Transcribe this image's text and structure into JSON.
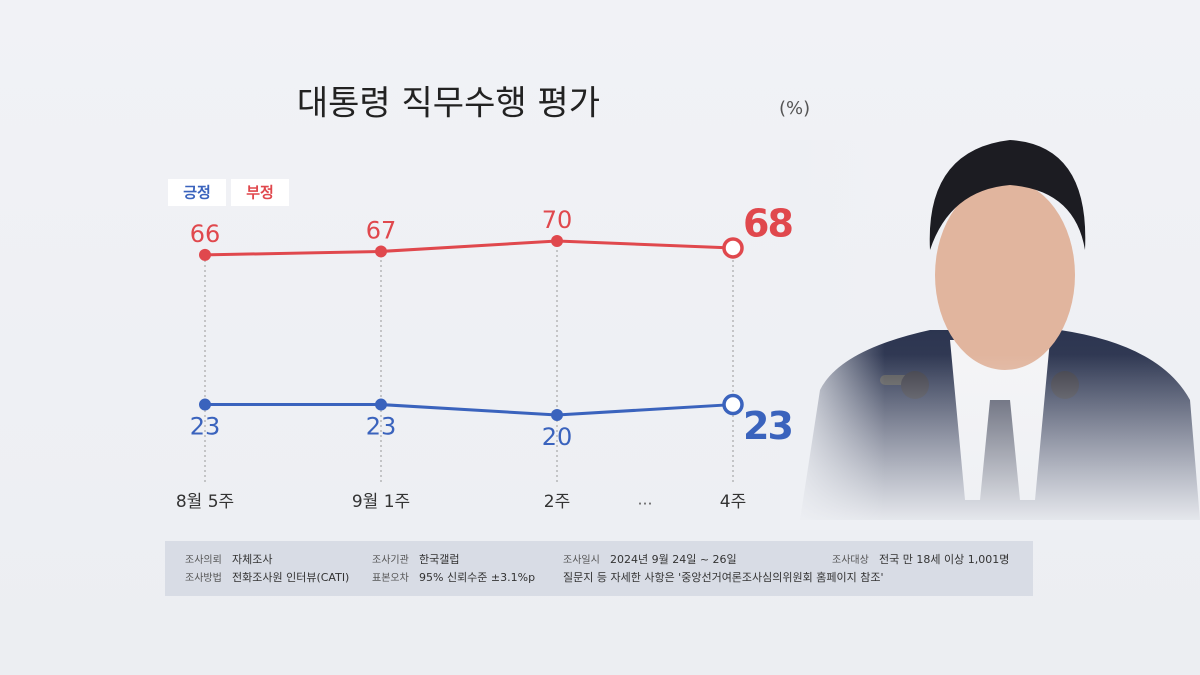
{
  "chart_data": {
    "type": "line",
    "title": "대통령 직무수행 평가",
    "unit": "(%)",
    "categories": [
      "8월 5주",
      "9월 1주",
      "2주",
      "4주"
    ],
    "annotations": [
      "…"
    ],
    "series": [
      {
        "name": "긍정",
        "color": "#3a63bd",
        "values": [
          23,
          23,
          20,
          23
        ]
      },
      {
        "name": "부정",
        "color": "#e0484d",
        "values": [
          66,
          67,
          70,
          68
        ]
      }
    ],
    "footer": {
      "rows": [
        [
          {
            "label": "조사의뢰",
            "value": "자체조사"
          },
          {
            "label": "조사기관",
            "value": "한국갤럽"
          },
          {
            "label": "조사일시",
            "value": "2024년 9월 24일 ~ 26일"
          },
          {
            "label": "조사대상",
            "value": "전국 만 18세 이상 1,001명"
          }
        ],
        [
          {
            "label": "조사방법",
            "value": "전화조사원 인터뷰(CATI)"
          },
          {
            "label": "표본오차",
            "value": "95% 신뢰수준 ±3.1%p"
          },
          {
            "value": "질문지 등 자세한 사항은 '중앙선거여론조사심의위원회 홈페이지 참조'"
          }
        ]
      ]
    }
  }
}
